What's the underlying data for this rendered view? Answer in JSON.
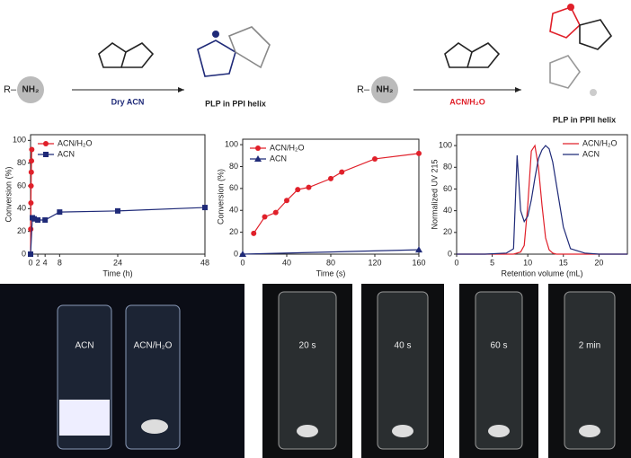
{
  "scheme": {
    "reagent_left": "R–",
    "amine_left": "NH₂",
    "condition_left": "Dry ACN",
    "product_left": "PLP in PPI helix",
    "reagent_right": "R–",
    "amine_right": "NH₂",
    "condition_right": "ACN/H₂O",
    "product_right": "PLP in PPII helix"
  },
  "chart_data": [
    {
      "type": "scatter",
      "xlabel": "Time (h)",
      "ylabel": "Conversion (%)",
      "xlim": [
        0,
        48
      ],
      "ylim": [
        0,
        105
      ],
      "xticks": [
        0,
        2,
        4,
        8,
        24,
        48
      ],
      "yticks": [
        0,
        20,
        40,
        60,
        80,
        100
      ],
      "grid": false,
      "legend": "upper left",
      "connect": true,
      "series": [
        {
          "name": "ACN/H₂O",
          "color": "#e0202a",
          "marker": "circle",
          "x": [
            0,
            0.05,
            0.1,
            0.15,
            0.2,
            0.25,
            0.33
          ],
          "values": [
            0,
            22,
            45,
            60,
            72,
            82,
            92
          ]
        },
        {
          "name": "ACN",
          "color": "#1f2a78",
          "marker": "square",
          "x": [
            0,
            0.5,
            1,
            2,
            4,
            8,
            24,
            48
          ],
          "values": [
            0,
            32,
            31,
            30,
            30,
            37,
            38,
            41
          ]
        }
      ]
    },
    {
      "type": "scatter",
      "xlabel": "Time (s)",
      "ylabel": "Conversion (%)",
      "xlim": [
        0,
        160
      ],
      "ylim": [
        0,
        105
      ],
      "xticks": [
        0,
        40,
        80,
        120,
        160
      ],
      "yticks": [
        0,
        20,
        40,
        60,
        80,
        100
      ],
      "grid": false,
      "legend": "upper left",
      "connect": true,
      "series": [
        {
          "name": "ACN/H₂O",
          "color": "#e0202a",
          "marker": "circle",
          "x": [
            10,
            20,
            30,
            40,
            50,
            60,
            80,
            90,
            120,
            160
          ],
          "values": [
            19,
            34,
            38,
            49,
            59,
            61,
            69,
            75,
            87,
            92
          ]
        },
        {
          "name": "ACN",
          "color": "#1f2a78",
          "marker": "triangle",
          "x": [
            0,
            160
          ],
          "values": [
            0,
            4
          ]
        }
      ]
    },
    {
      "type": "line",
      "xlabel": "Retention volume (mL)",
      "ylabel": "Normalized UV 215",
      "xlim": [
        0,
        24
      ],
      "ylim": [
        0,
        110
      ],
      "xticks": [
        0,
        5,
        10,
        15,
        20
      ],
      "yticks": [
        0,
        20,
        40,
        60,
        80,
        100
      ],
      "grid": false,
      "legend": "upper right",
      "connect": true,
      "series": [
        {
          "name": "ACN/H₂O",
          "color": "#e0202a",
          "marker": "none",
          "x": [
            0,
            4,
            7,
            8,
            8.5,
            9,
            9.5,
            10,
            10.5,
            11,
            11.5,
            12,
            12.5,
            13,
            13.5,
            14,
            15,
            16,
            18,
            20,
            24
          ],
          "values": [
            0,
            0,
            0,
            0,
            1,
            2,
            8,
            45,
            95,
            100,
            80,
            45,
            15,
            4,
            1,
            0,
            0,
            0,
            0,
            0,
            0
          ]
        },
        {
          "name": "ACN",
          "color": "#1f2a78",
          "marker": "none",
          "x": [
            0,
            4,
            7,
            8,
            8.5,
            9,
            9.5,
            10,
            10.5,
            11,
            11.5,
            12,
            12.5,
            13,
            13.5,
            14,
            15,
            16,
            18,
            20,
            24
          ],
          "values": [
            0,
            0,
            1,
            5,
            91,
            40,
            30,
            35,
            50,
            70,
            88,
            96,
            100,
            97,
            85,
            65,
            25,
            5,
            1,
            0,
            0
          ]
        }
      ]
    }
  ],
  "photos": [
    "ACN",
    "ACN/H₂O",
    "20 s",
    "40 s",
    "60 s",
    "2 min"
  ]
}
